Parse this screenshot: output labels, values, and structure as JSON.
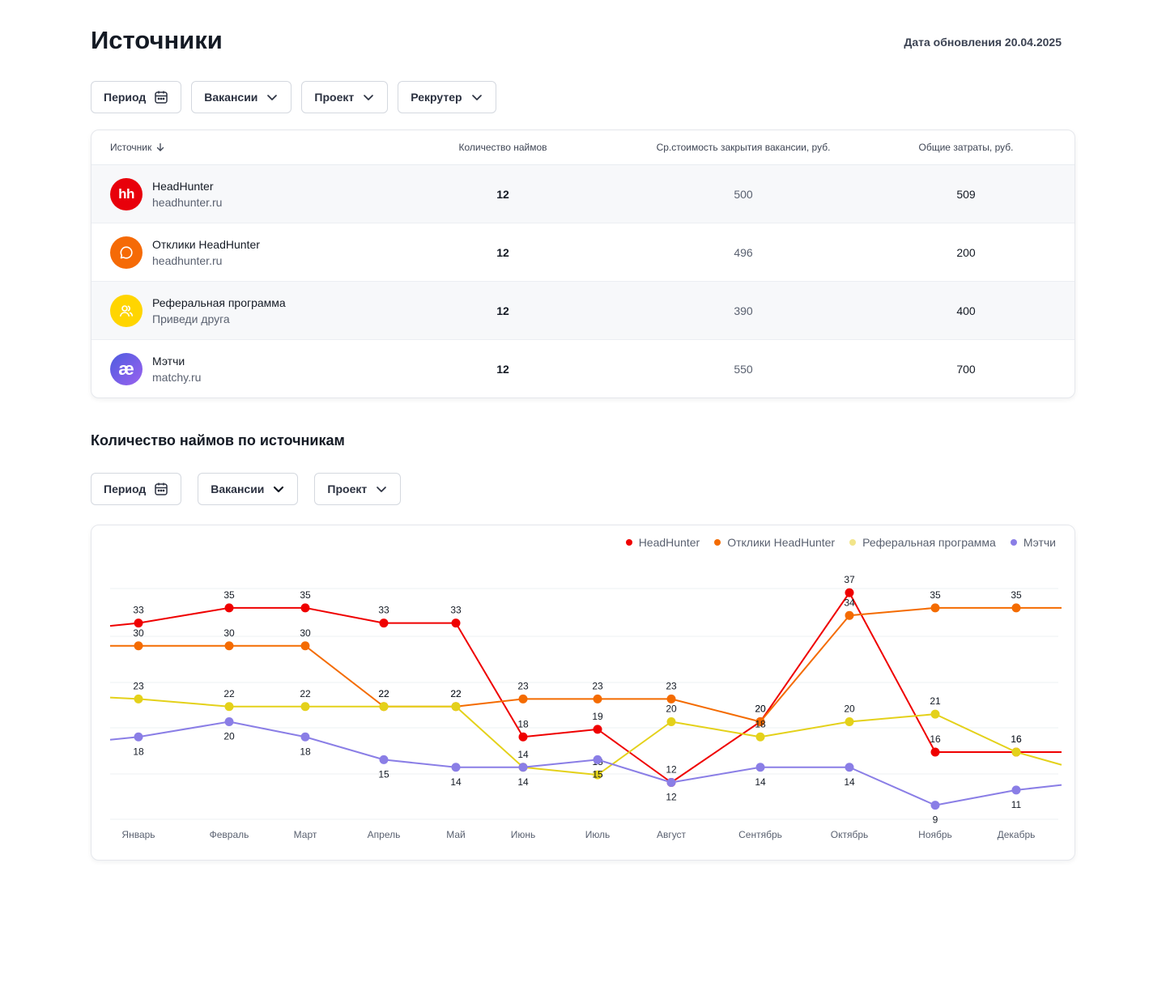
{
  "header": {
    "title": "Источники",
    "update_date": "Дата обновления 20.04.2025"
  },
  "filters_top": [
    {
      "label": "Период",
      "icon": "calendar-icon"
    },
    {
      "label": "Вакансии",
      "icon": "chevron-down-icon"
    },
    {
      "label": "Проект",
      "icon": "chevron-down-icon"
    },
    {
      "label": "Рекрутер",
      "icon": "chevron-down-icon"
    }
  ],
  "table": {
    "columns": [
      "Источник",
      "Количество наймов",
      "Ср.стоимость закрытия вакансии, руб.",
      "Общие затраты, руб."
    ],
    "rows": [
      {
        "name": "HeadHunter",
        "sub": "headhunter.ru",
        "hires": "12",
        "cost": "500",
        "total": "509",
        "logo": "hh",
        "logo_color": "#e8000b"
      },
      {
        "name": "Отклики HeadHunter",
        "sub": "headhunter.ru",
        "hires": "12",
        "cost": "496",
        "total": "200",
        "logo": "chat-bubble-icon",
        "logo_color": "#f56a06"
      },
      {
        "name": "Реферальная программа",
        "sub": "Приведи друга",
        "hires": "12",
        "cost": "390",
        "total": "400",
        "logo": "users-icon",
        "logo_color": "#ffd500"
      },
      {
        "name": "Мэтчи",
        "sub": "matchy.ru",
        "hires": "12",
        "cost": "550",
        "total": "700",
        "logo": "æ",
        "logo_color": "#6b5ee8"
      }
    ]
  },
  "chart_section": {
    "title": "Количество наймов по источникам",
    "filters": [
      {
        "label": "Период",
        "icon": "calendar-icon"
      },
      {
        "label": "Вакансии",
        "icon": "chevron-down-icon"
      },
      {
        "label": "Проект",
        "icon": "chevron-down-icon"
      }
    ]
  },
  "chart_data": {
    "type": "line",
    "title": "",
    "xlabel": "",
    "ylabel": "",
    "grid": true,
    "legend_position": "top-right",
    "categories": [
      "Январь",
      "Февраль",
      "Март",
      "Апрель",
      "Май",
      "Июнь",
      "Июль",
      "Август",
      "Сентябрь",
      "Октябрь",
      "Ноябрь",
      "Декабрь"
    ],
    "series": [
      {
        "name": "HeadHunter",
        "color": "#ef0000",
        "values": [
          33,
          35,
          35,
          33,
          33,
          18,
          19,
          12,
          20,
          37,
          16,
          16
        ]
      },
      {
        "name": "Отклики HeadHunter",
        "color": "#f46b00",
        "values": [
          30,
          30,
          30,
          22,
          22,
          23,
          23,
          23,
          20,
          34,
          35,
          35
        ]
      },
      {
        "name": "Реферальная программа",
        "color": "#e4d11a",
        "values": [
          23,
          22,
          22,
          22,
          22,
          14,
          13,
          20,
          18,
          20,
          21,
          16
        ]
      },
      {
        "name": "Мэтчи",
        "color": "#8a7ee6",
        "values": [
          18,
          20,
          18,
          15,
          14,
          14,
          15,
          12,
          14,
          14,
          9,
          11
        ]
      }
    ]
  }
}
